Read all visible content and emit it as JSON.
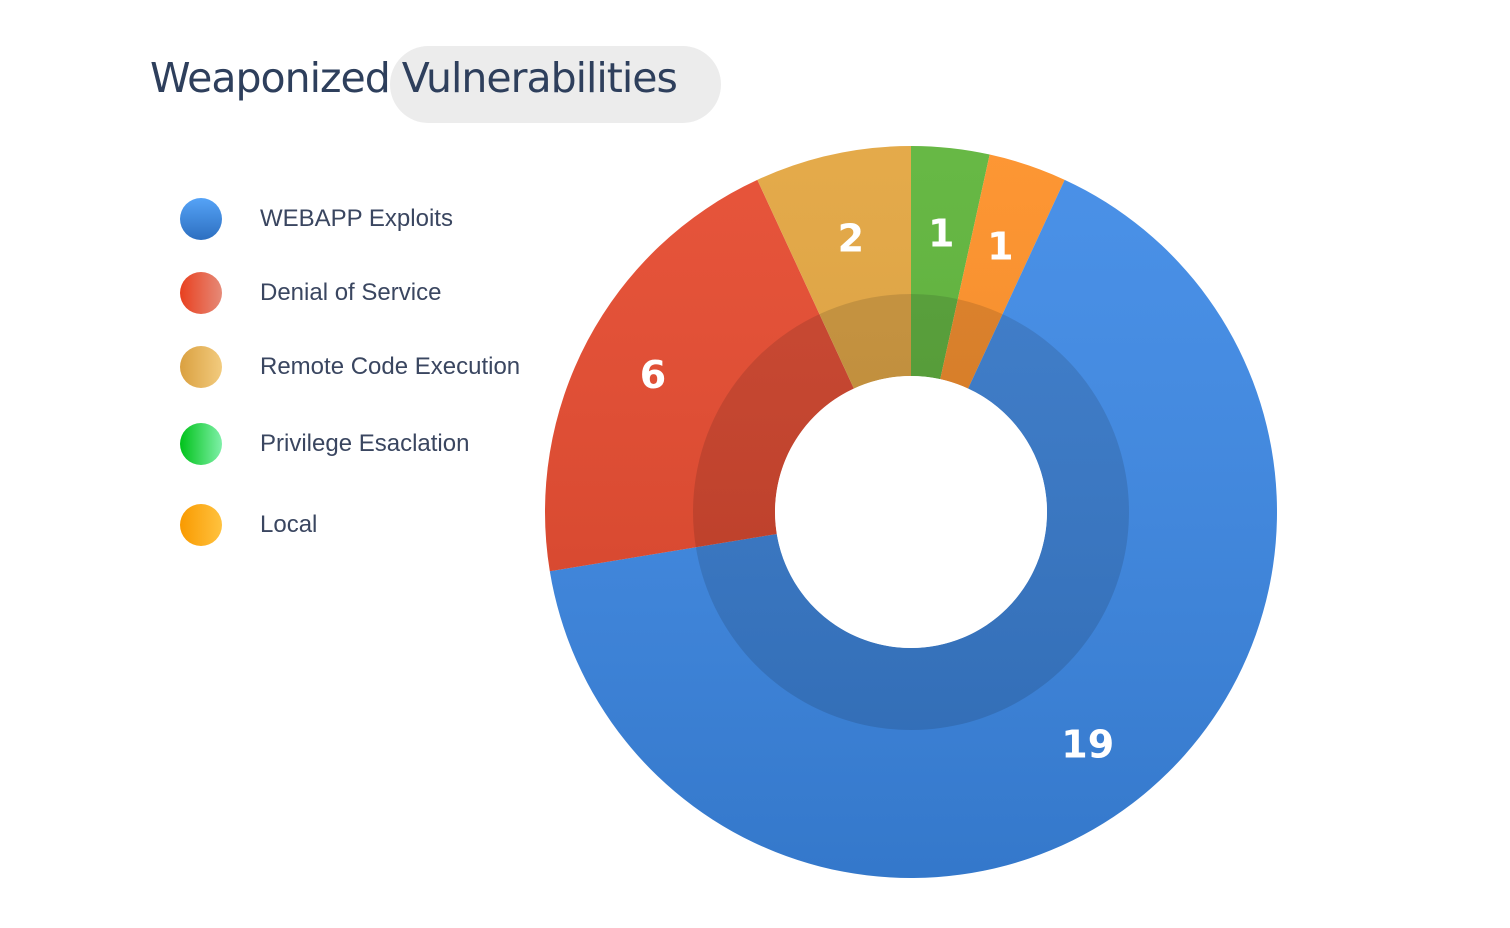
{
  "chart_data": {
    "type": "pie",
    "title": "Weaponized Vulnerabilities",
    "donut": true,
    "legend_position": "left",
    "series": [
      {
        "name": "Privilege Esaclation",
        "value": 1,
        "color": "#5ab235",
        "legend_gradient": [
          "#00c21a",
          "#7ff0a8"
        ]
      },
      {
        "name": "Local",
        "value": 1,
        "color": "#fd8d22",
        "legend_gradient": [
          "#f99a00",
          "#ffc23f"
        ]
      },
      {
        "name": "WEBAPP Exploits",
        "value": 19,
        "color": "#3b88e6",
        "legend_gradient": [
          "#55a3f7",
          "#2d6fc0"
        ]
      },
      {
        "name": "Denial of Service",
        "value": 6,
        "color": "#e5462a",
        "legend_gradient": [
          "#e8401f",
          "#e68a78"
        ]
      },
      {
        "name": "Remote Code Execution",
        "value": 2,
        "color": "#e2a33b",
        "legend_gradient": [
          "#daa040",
          "#f2cb7e"
        ]
      }
    ],
    "legend_order": [
      "WEBAPP Exploits",
      "Denial of Service",
      "Remote Code Execution",
      "Privilege Esaclation",
      "Local"
    ]
  }
}
